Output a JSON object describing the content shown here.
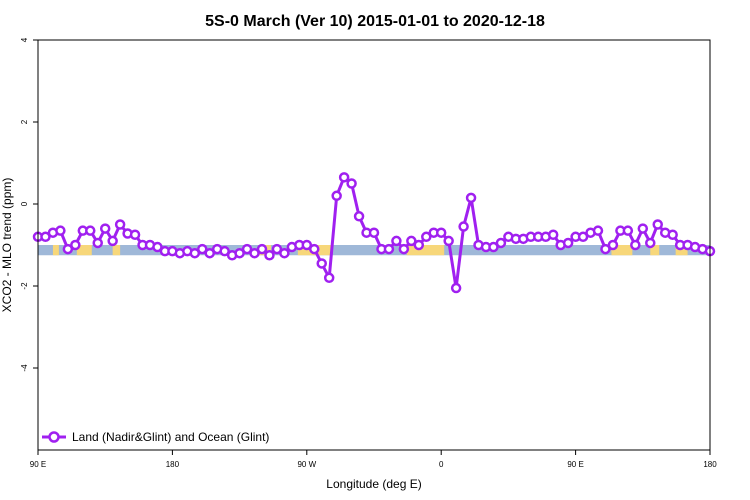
{
  "chart_data": {
    "type": "line",
    "title": "5S-0 March (Ver 10)   2015-01-01 to 2020-12-18",
    "xlabel": "Longitude (deg E)",
    "ylabel": "XCO2 - MLO trend (ppm)",
    "xlim": [
      90,
      540
    ],
    "ylim": [
      -6,
      4
    ],
    "xticks": [
      {
        "value": 90,
        "label": "90 E"
      },
      {
        "value": 180,
        "label": "180"
      },
      {
        "value": 270,
        "label": "90 W"
      },
      {
        "value": 360,
        "label": "0"
      },
      {
        "value": 450,
        "label": "90 E"
      },
      {
        "value": 540,
        "label": "180"
      }
    ],
    "yticks": [
      {
        "value": -4,
        "label": "-4"
      },
      {
        "value": -2,
        "label": "-2"
      },
      {
        "value": 0,
        "label": "0"
      },
      {
        "value": 2,
        "label": "2"
      },
      {
        "value": 4,
        "label": "4"
      }
    ],
    "legend": {
      "label": "Land (Nadir&Glint) and Ocean (Glint)",
      "position": "bottom-left",
      "color": "#a020f0"
    },
    "surface_band": {
      "y_range": [
        -1.25,
        -1.0
      ],
      "ocean_color": "#9fb8d8",
      "land_color": "#f7d77a",
      "land_segments": [
        [
          100,
          104
        ],
        [
          116,
          126
        ],
        [
          140,
          145
        ],
        [
          238,
          246
        ],
        [
          264,
          287
        ],
        [
          337,
          362
        ],
        [
          474,
          488
        ],
        [
          500,
          506
        ],
        [
          517,
          525
        ]
      ]
    },
    "series": [
      {
        "name": "Land (Nadir&Glint) and Ocean (Glint)",
        "color": "#a020f0",
        "x": [
          90,
          95,
          100,
          105,
          110,
          115,
          120,
          125,
          130,
          135,
          140,
          145,
          150,
          155,
          160,
          165,
          170,
          175,
          180,
          185,
          190,
          195,
          200,
          205,
          210,
          215,
          220,
          225,
          230,
          235,
          240,
          245,
          250,
          255,
          260,
          265,
          270,
          275,
          280,
          285,
          290,
          295,
          300,
          305,
          310,
          315,
          320,
          325,
          330,
          335,
          340,
          345,
          350,
          355,
          360,
          365,
          370,
          375,
          380,
          385,
          390,
          395,
          400,
          405,
          410,
          415,
          420,
          425,
          430,
          435,
          440,
          445,
          450,
          455,
          460,
          465,
          470,
          475,
          480,
          485,
          490,
          495,
          500,
          505,
          510,
          515,
          520,
          525,
          530,
          535,
          540
        ],
        "y": [
          -0.8,
          -0.8,
          -0.7,
          -0.65,
          -1.1,
          -1.0,
          -0.65,
          -0.65,
          -0.95,
          -0.6,
          -0.9,
          -0.5,
          -0.72,
          -0.75,
          -1.0,
          -1.0,
          -1.05,
          -1.15,
          -1.15,
          -1.2,
          -1.15,
          -1.2,
          -1.1,
          -1.2,
          -1.1,
          -1.15,
          -1.25,
          -1.2,
          -1.1,
          -1.2,
          -1.1,
          -1.25,
          -1.1,
          -1.2,
          -1.05,
          -1.0,
          -1.0,
          -1.1,
          -1.45,
          -1.8,
          0.2,
          0.65,
          0.5,
          -0.3,
          -0.7,
          -0.7,
          -1.1,
          -1.1,
          -0.9,
          -1.1,
          -0.9,
          -1.0,
          -0.8,
          -0.7,
          -0.7,
          -0.9,
          -2.05,
          -0.55,
          0.15,
          -1.0,
          -1.05,
          -1.05,
          -0.95,
          -0.8,
          -0.85,
          -0.85,
          -0.8,
          -0.8,
          -0.8,
          -0.75,
          -1.0,
          -0.95,
          -0.8,
          -0.8,
          -0.7,
          -0.65,
          -1.1,
          -1.0,
          -0.65,
          -0.65,
          -1.0,
          -0.6,
          -0.95,
          -0.5,
          -0.7,
          -0.75,
          -1.0,
          -1.0,
          -1.05,
          -1.1,
          -1.15
        ]
      }
    ]
  }
}
